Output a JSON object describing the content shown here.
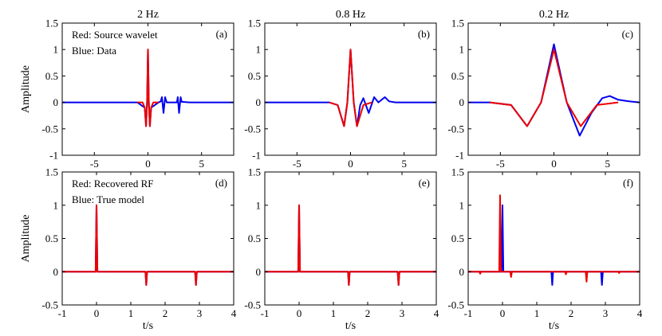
{
  "chart_data": [
    {
      "id": "a",
      "type": "line",
      "title": "2 Hz",
      "panel_label": "(a)",
      "annotations": [
        "Red: Source wavelet",
        "Blue: Data"
      ],
      "ylabel": "Amplitude",
      "xlabel": "",
      "xlim": [
        -8,
        8
      ],
      "ylim": [
        -1,
        1.5
      ],
      "xticks": [
        -5,
        0,
        5
      ],
      "yticks": [
        -1,
        -0.5,
        0,
        0.5,
        1,
        1.5
      ],
      "series": [
        {
          "name": "Data",
          "color": "#0000ee",
          "x": [
            -8,
            -1,
            -0.3,
            -0.18,
            -0.08,
            0,
            0.08,
            0.18,
            0.3,
            1,
            1.2,
            1.3,
            1.45,
            1.6,
            1.75,
            2.7,
            2.78,
            2.9,
            3.05,
            3.15,
            3.9,
            8
          ],
          "y": [
            0,
            0,
            -0.1,
            -0.45,
            0,
            1,
            0,
            -0.45,
            -0.1,
            0,
            0.02,
            0.1,
            -0.2,
            0.1,
            0,
            0,
            0.1,
            -0.2,
            0.1,
            0.01,
            0,
            0
          ]
        },
        {
          "name": "Source wavelet",
          "color": "#ee0000",
          "x": [
            -1,
            -0.5,
            -0.3,
            -0.18,
            -0.08,
            0,
            0.08,
            0.18,
            0.3,
            0.5,
            1
          ],
          "y": [
            0,
            0,
            -0.1,
            -0.45,
            0,
            1,
            0,
            -0.45,
            -0.1,
            0,
            0
          ]
        }
      ]
    },
    {
      "id": "b",
      "type": "line",
      "title": "0.8 Hz",
      "panel_label": "(b)",
      "annotations": [],
      "xlim": [
        -8,
        8
      ],
      "ylim": [
        -1,
        1.5
      ],
      "xticks": [
        -5,
        0,
        5
      ],
      "yticks": [
        -1,
        -0.5,
        0,
        0.5,
        1,
        1.5
      ],
      "series": [
        {
          "name": "Data",
          "color": "#0000ee",
          "x": [
            -8,
            -2,
            -1.2,
            -0.6,
            -0.3,
            0,
            0.3,
            0.6,
            0.9,
            1.2,
            1.7,
            2.2,
            2.6,
            3.2,
            3.6,
            4.2,
            8
          ],
          "y": [
            0,
            0,
            -0.05,
            -0.45,
            0,
            1,
            0,
            -0.45,
            -0.05,
            0.08,
            -0.2,
            0.1,
            0,
            0.1,
            0.02,
            0,
            0
          ]
        },
        {
          "name": "Source wavelet",
          "color": "#ee0000",
          "x": [
            -2,
            -1.2,
            -0.6,
            -0.3,
            0,
            0.3,
            0.6,
            1.2,
            2
          ],
          "y": [
            0,
            -0.05,
            -0.45,
            0,
            1,
            0,
            -0.45,
            -0.05,
            0
          ]
        }
      ]
    },
    {
      "id": "c",
      "type": "line",
      "title": "0.2 Hz",
      "panel_label": "(c)",
      "annotations": [],
      "xlim": [
        -8,
        8
      ],
      "ylim": [
        -1,
        1.5
      ],
      "xticks": [
        -5,
        0,
        5
      ],
      "yticks": [
        -1,
        -0.5,
        0,
        0.5,
        1,
        1.5
      ],
      "series": [
        {
          "name": "Data",
          "color": "#0000ee",
          "x": [
            -8,
            -6,
            -4,
            -2.5,
            -1.2,
            0,
            1.2,
            2.4,
            3.5,
            4.5,
            5.2,
            6,
            7,
            8
          ],
          "y": [
            0,
            0,
            -0.05,
            -0.45,
            0,
            1.1,
            0,
            -0.63,
            -0.2,
            0.08,
            0.12,
            0.05,
            0.02,
            0
          ]
        },
        {
          "name": "Source wavelet",
          "color": "#ee0000",
          "x": [
            -6,
            -4,
            -2.5,
            -1.2,
            0,
            1.2,
            2.5,
            4,
            6
          ],
          "y": [
            0,
            -0.05,
            -0.45,
            0,
            1,
            0,
            -0.45,
            -0.05,
            0
          ]
        }
      ]
    },
    {
      "id": "d",
      "type": "line",
      "title": "",
      "panel_label": "(d)",
      "annotations": [
        "Red: Recovered RF",
        "Blue: True model"
      ],
      "ylabel": "Amplitude",
      "xlabel": "t/s",
      "xlim": [
        -1,
        4
      ],
      "ylim": [
        -0.5,
        1.5
      ],
      "xticks": [
        -1,
        0,
        1,
        2,
        3,
        4
      ],
      "yticks": [
        -0.5,
        0,
        0.5,
        1,
        1.5
      ],
      "series": [
        {
          "name": "True model",
          "color": "#0000ee",
          "spikes": [
            [
              0,
              1
            ],
            [
              1.45,
              -0.2
            ],
            [
              2.9,
              -0.2
            ]
          ]
        },
        {
          "name": "Recovered RF",
          "color": "#ee0000",
          "spikes": [
            [
              0,
              1
            ],
            [
              1.45,
              -0.2
            ],
            [
              2.9,
              -0.2
            ]
          ]
        }
      ]
    },
    {
      "id": "e",
      "type": "line",
      "title": "",
      "panel_label": "(e)",
      "annotations": [],
      "xlabel": "t/s",
      "xlim": [
        -1,
        4
      ],
      "ylim": [
        -0.5,
        1.5
      ],
      "xticks": [
        -1,
        0,
        1,
        2,
        3,
        4
      ],
      "yticks": [
        -0.5,
        0,
        0.5,
        1,
        1.5
      ],
      "series": [
        {
          "name": "True model",
          "color": "#0000ee",
          "spikes": [
            [
              0,
              1
            ],
            [
              1.45,
              -0.2
            ],
            [
              2.9,
              -0.2
            ]
          ]
        },
        {
          "name": "Recovered RF",
          "color": "#ee0000",
          "spikes": [
            [
              0,
              1
            ],
            [
              1.45,
              -0.2
            ],
            [
              2.9,
              -0.2
            ]
          ]
        }
      ]
    },
    {
      "id": "f",
      "type": "line",
      "title": "",
      "panel_label": "(f)",
      "annotations": [],
      "xlabel": "t/s",
      "xlim": [
        -1,
        4
      ],
      "ylim": [
        -0.5,
        1.5
      ],
      "xticks": [
        -1,
        0,
        1,
        2,
        3,
        4
      ],
      "yticks": [
        -0.5,
        0,
        0.5,
        1,
        1.5
      ],
      "series": [
        {
          "name": "True model",
          "color": "#0000ee",
          "spikes": [
            [
              0,
              1
            ],
            [
              1.45,
              -0.2
            ],
            [
              2.9,
              -0.2
            ]
          ]
        },
        {
          "name": "Recovered RF",
          "color": "#ee0000",
          "spikes": [
            [
              -0.65,
              -0.03
            ],
            [
              -0.07,
              1.15
            ],
            [
              0.25,
              -0.08
            ],
            [
              1.85,
              -0.04
            ],
            [
              2.45,
              -0.15
            ],
            [
              3.4,
              -0.02
            ]
          ]
        }
      ]
    }
  ]
}
